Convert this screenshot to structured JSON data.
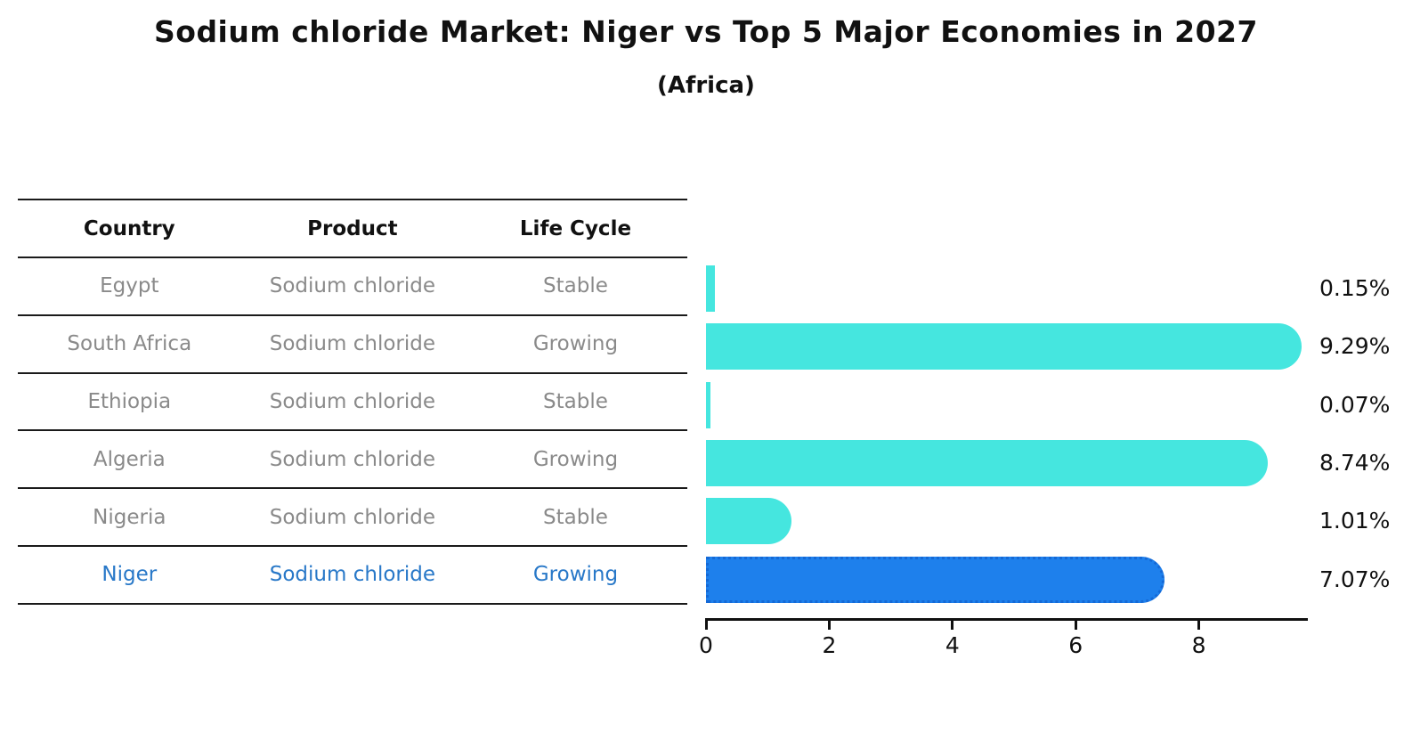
{
  "header": {
    "title": "Sodium chloride Market: Niger vs Top 5 Major Economies in 2027",
    "subtitle": "(Africa)"
  },
  "table": {
    "headers": [
      "Country",
      "Product",
      "Life Cycle"
    ],
    "rows": [
      {
        "country": "Egypt",
        "product": "Sodium chloride",
        "life_cycle": "Stable",
        "highlight": false
      },
      {
        "country": "South Africa",
        "product": "Sodium chloride",
        "life_cycle": "Growing",
        "highlight": false
      },
      {
        "country": "Ethiopia",
        "product": "Sodium chloride",
        "life_cycle": "Stable",
        "highlight": false
      },
      {
        "country": "Algeria",
        "product": "Sodium chloride",
        "life_cycle": "Growing",
        "highlight": false
      },
      {
        "country": "Nigeria",
        "product": "Sodium chloride",
        "life_cycle": "Stable",
        "highlight": false
      },
      {
        "country": "Niger",
        "product": "Sodium chloride",
        "life_cycle": "Growing",
        "highlight": true
      }
    ]
  },
  "chart_data": {
    "type": "bar",
    "orientation": "horizontal",
    "title": "Sodium chloride Market: Niger vs Top 5 Major Economies in 2027 (Africa)",
    "categories": [
      "Egypt",
      "South Africa",
      "Ethiopia",
      "Algeria",
      "Nigeria",
      "Niger"
    ],
    "values": [
      0.15,
      9.29,
      0.07,
      8.74,
      1.01,
      7.07
    ],
    "value_labels": [
      "0.15%",
      "9.29%",
      "0.07%",
      "8.74%",
      "1.01%",
      "7.07%"
    ],
    "x_ticks": [
      0,
      2,
      4,
      6,
      8
    ],
    "xlim": [
      0,
      9.8
    ],
    "xlabel": "",
    "ylabel": "",
    "grid": false,
    "legend": false,
    "highlight_index": 5,
    "bar_color": "#45E6DF",
    "highlight_color": "#1E80EC"
  },
  "colors": {
    "bar_cyan": "#45E6DF",
    "bar_blue": "#1E80EC",
    "bar_blue_border": "#1569D6",
    "table_text_gray": "#8a8a8a",
    "highlight_text_blue": "#2878C8",
    "ink_black": "#111111"
  }
}
